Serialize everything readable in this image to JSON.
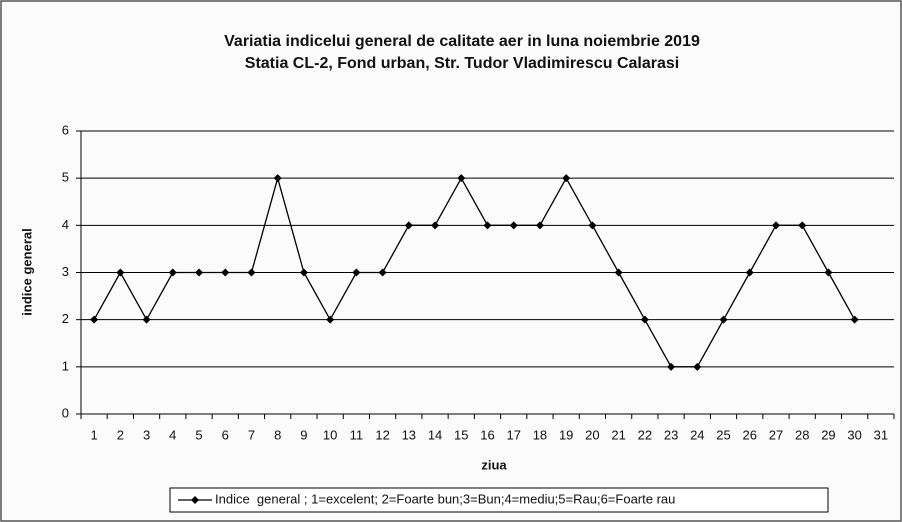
{
  "chart_data": {
    "type": "line",
    "title": [
      "Variatia indicelui general de calitate aer in luna noiembrie 2019",
      "Statia CL-2, Fond urban,  Str. Tudor Vladimirescu Calarasi"
    ],
    "x_label": "ziua",
    "y_label": "indice general",
    "categories": [
      "1",
      "2",
      "3",
      "4",
      "5",
      "6",
      "7",
      "8",
      "9",
      "10",
      "11",
      "12",
      "13",
      "14",
      "15",
      "16",
      "17",
      "18",
      "19",
      "20",
      "21",
      "22",
      "23",
      "24",
      "25",
      "26",
      "27",
      "28",
      "29",
      "30",
      "31"
    ],
    "series": [
      {
        "name": "Indice  general ; 1=excelent; 2=Foarte bun;3=Bun;4=mediu;5=Rau;6=Foarte rau",
        "color": "#000000",
        "values": [
          2,
          3,
          2,
          3,
          3,
          3,
          3,
          5,
          3,
          2,
          3,
          3,
          4,
          4,
          5,
          4,
          4,
          4,
          5,
          4,
          3,
          2,
          1,
          1,
          2,
          3,
          4,
          4,
          3,
          2,
          null
        ]
      }
    ],
    "ylim": [
      0,
      6
    ],
    "yticks": [
      0,
      1,
      2,
      3,
      4,
      5,
      6
    ],
    "grid": true,
    "legend": "bottom"
  }
}
